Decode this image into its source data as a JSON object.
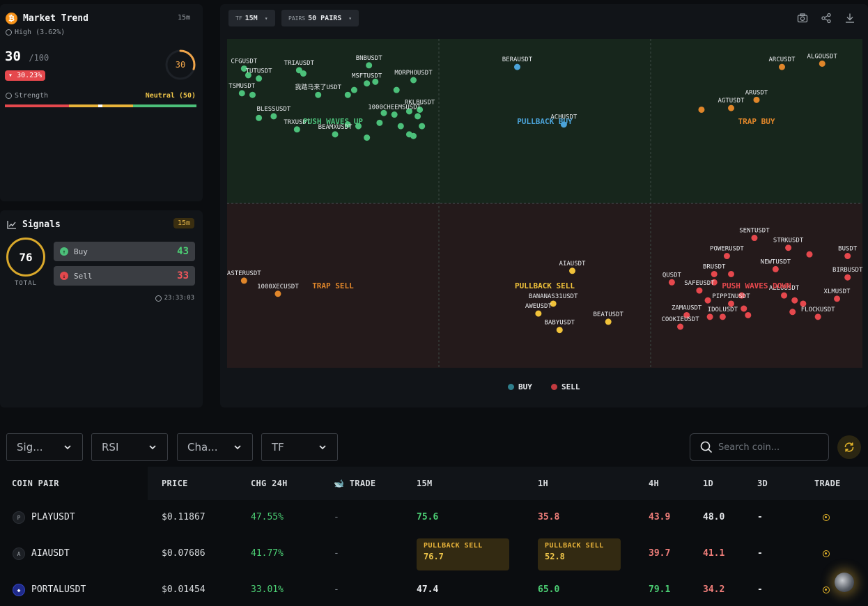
{
  "market_trend": {
    "icon": "bitcoin-icon",
    "title": "Market Trend",
    "timeframe": "15m",
    "high_label": "High (3.62%)",
    "score": "30",
    "score_max": "/100",
    "change": "30.23%",
    "gauge_value": "30",
    "gauge_fraction": 0.3,
    "strength_label": "Strength",
    "strength_status": "Neutral (50)"
  },
  "signals": {
    "title": "Signals",
    "timeframe": "15m",
    "total": "76",
    "total_label": "TOTAL",
    "buy_label": "Buy",
    "buy_count": "43",
    "sell_label": "Sell",
    "sell_count": "33",
    "time": "23:33:03"
  },
  "toolbar": {
    "tf_key": "TF",
    "tf_value": "15M",
    "pairs_key": "PAIRS",
    "pairs_value": "50 PAIRS"
  },
  "quadrant_labels": {
    "push_up": "PUSH WAVES UP",
    "pullback_buy": "PULLBACK BUY",
    "trap_buy": "TRAP BUY",
    "trap_sell": "TRAP SELL",
    "pullback_sell": "PULLBACK SELL",
    "push_down": "PUSH WAVES DOWN"
  },
  "legend": {
    "buy": "BUY",
    "sell": "SELL"
  },
  "colors": {
    "push_up": "#4cc07a",
    "pullback_buy": "#4ba3d9",
    "trap_buy": "#e0862a",
    "trap_sell": "#e0862a",
    "pullback_sell": "#f0c23a",
    "push_down": "#e5484d",
    "legend_buy": "#2f7f8c",
    "legend_sell": "#c23a3f"
  },
  "chart_data": {
    "type": "scatter",
    "points": [
      {
        "label": "CFGUSDT",
        "group": "push_up",
        "x": 0.08,
        "y": 0.82
      },
      {
        "label": "TUTUSDT",
        "group": "push_up",
        "x": 0.15,
        "y": 0.76
      },
      {
        "label": "TRIAUSDT",
        "group": "push_up",
        "x": 0.34,
        "y": 0.81
      },
      {
        "label": "BNBUSDT",
        "group": "push_up",
        "x": 0.67,
        "y": 0.84
      },
      {
        "label": "MORPHOUSDT",
        "group": "push_up",
        "x": 0.88,
        "y": 0.75
      },
      {
        "label": "MSFTUSDT",
        "group": "push_up",
        "x": 0.66,
        "y": 0.73
      },
      {
        "label": "TSMUSDT",
        "group": "push_up",
        "x": 0.07,
        "y": 0.67
      },
      {
        "label": "我踏马来了USDT",
        "group": "push_up",
        "x": 0.43,
        "y": 0.66
      },
      {
        "label": "RKLBUSDT",
        "group": "push_up",
        "x": 0.91,
        "y": 0.57
      },
      {
        "label": "BLESSUSDT",
        "group": "push_up",
        "x": 0.22,
        "y": 0.53
      },
      {
        "label": "1000CHEEMSUSDT",
        "group": "push_up",
        "x": 0.79,
        "y": 0.54
      },
      {
        "label": "TRXUSDT",
        "group": "push_up",
        "x": 0.33,
        "y": 0.45
      },
      {
        "label": "BEAMXUSDT",
        "group": "push_up",
        "x": 0.51,
        "y": 0.42
      },
      {
        "label": "BERAUSDT",
        "group": "pullback_buy",
        "x": 0.37,
        "y": 0.83
      },
      {
        "label": "ACHUSDT",
        "group": "pullback_buy",
        "x": 0.59,
        "y": 0.48
      },
      {
        "label": "ARCUSDT",
        "group": "trap_buy",
        "x": 0.62,
        "y": 0.83
      },
      {
        "label": "ALGOUSDT",
        "group": "trap_buy",
        "x": 0.81,
        "y": 0.85
      },
      {
        "label": "ARUSDT",
        "group": "trap_buy",
        "x": 0.5,
        "y": 0.63
      },
      {
        "label": "AGTUSDT",
        "group": "trap_buy",
        "x": 0.38,
        "y": 0.58
      },
      {
        "label": "ASTERUSDT",
        "group": "trap_sell",
        "x": 0.08,
        "y": 0.53
      },
      {
        "label": "1000XECUSDT",
        "group": "trap_sell",
        "x": 0.24,
        "y": 0.45
      },
      {
        "label": "AIAUSDT",
        "group": "pullback_sell",
        "x": 0.63,
        "y": 0.59
      },
      {
        "label": "BANANAS31USDT",
        "group": "pullback_sell",
        "x": 0.54,
        "y": 0.39
      },
      {
        "label": "AWEUSDT",
        "group": "pullback_sell",
        "x": 0.47,
        "y": 0.33
      },
      {
        "label": "BEATUSDT",
        "group": "pullback_sell",
        "x": 0.8,
        "y": 0.28
      },
      {
        "label": "BABYUSDT",
        "group": "pullback_sell",
        "x": 0.57,
        "y": 0.23
      },
      {
        "label": "SENTUSDT",
        "group": "push_down",
        "x": 0.49,
        "y": 0.79
      },
      {
        "label": "STRKUSDT",
        "group": "push_down",
        "x": 0.65,
        "y": 0.73
      },
      {
        "label": "POWERUSDT",
        "group": "push_down",
        "x": 0.36,
        "y": 0.68
      },
      {
        "label": "BUSDT",
        "group": "push_down",
        "x": 0.93,
        "y": 0.68
      },
      {
        "label": "NEWTUSDT",
        "group": "push_down",
        "x": 0.59,
        "y": 0.6
      },
      {
        "label": "BRUSDT",
        "group": "push_down",
        "x": 0.3,
        "y": 0.57
      },
      {
        "label": "BIRBUSDT",
        "group": "push_down",
        "x": 0.93,
        "y": 0.55
      },
      {
        "label": "QUSDT",
        "group": "push_down",
        "x": 0.1,
        "y": 0.52
      },
      {
        "label": "SAFEUSDT",
        "group": "push_down",
        "x": 0.23,
        "y": 0.47
      },
      {
        "label": "ALLOUSDT",
        "group": "push_down",
        "x": 0.63,
        "y": 0.44
      },
      {
        "label": "XLMUSDT",
        "group": "push_down",
        "x": 0.88,
        "y": 0.42
      },
      {
        "label": "PIPPINUSDT",
        "group": "push_down",
        "x": 0.38,
        "y": 0.39
      },
      {
        "label": "ZAMAUSDT",
        "group": "push_down",
        "x": 0.17,
        "y": 0.32
      },
      {
        "label": "IDOLUSDT",
        "group": "push_down",
        "x": 0.34,
        "y": 0.31
      },
      {
        "label": "FLOCKUSDT",
        "group": "push_down",
        "x": 0.79,
        "y": 0.31
      },
      {
        "label": "COOKIEUSDT",
        "group": "push_down",
        "x": 0.14,
        "y": 0.25
      }
    ],
    "extra_points": [
      {
        "group": "push_up",
        "x": 0.1,
        "y": 0.78
      },
      {
        "group": "push_up",
        "x": 0.12,
        "y": 0.66
      },
      {
        "group": "push_up",
        "x": 0.36,
        "y": 0.79
      },
      {
        "group": "push_up",
        "x": 0.57,
        "y": 0.66
      },
      {
        "group": "push_up",
        "x": 0.6,
        "y": 0.69
      },
      {
        "group": "push_up",
        "x": 0.7,
        "y": 0.74
      },
      {
        "group": "push_up",
        "x": 0.8,
        "y": 0.69
      },
      {
        "group": "push_up",
        "x": 0.15,
        "y": 0.52
      },
      {
        "group": "push_up",
        "x": 0.57,
        "y": 0.48
      },
      {
        "group": "push_up",
        "x": 0.62,
        "y": 0.47
      },
      {
        "group": "push_up",
        "x": 0.66,
        "y": 0.4
      },
      {
        "group": "push_up",
        "x": 0.72,
        "y": 0.49
      },
      {
        "group": "push_up",
        "x": 0.82,
        "y": 0.47
      },
      {
        "group": "push_up",
        "x": 0.86,
        "y": 0.56
      },
      {
        "group": "push_up",
        "x": 0.9,
        "y": 0.53
      },
      {
        "group": "push_up",
        "x": 0.92,
        "y": 0.47
      },
      {
        "group": "push_up",
        "x": 0.86,
        "y": 0.42
      },
      {
        "group": "push_up",
        "x": 0.88,
        "y": 0.41
      },
      {
        "group": "push_up",
        "x": 0.74,
        "y": 0.55
      },
      {
        "group": "trap_buy",
        "x": 0.24,
        "y": 0.57
      },
      {
        "group": "push_down",
        "x": 0.75,
        "y": 0.69
      },
      {
        "group": "push_down",
        "x": 0.3,
        "y": 0.52
      },
      {
        "group": "push_down",
        "x": 0.38,
        "y": 0.57
      },
      {
        "group": "push_down",
        "x": 0.27,
        "y": 0.41
      },
      {
        "group": "push_down",
        "x": 0.43,
        "y": 0.44
      },
      {
        "group": "push_down",
        "x": 0.44,
        "y": 0.36
      },
      {
        "group": "push_down",
        "x": 0.46,
        "y": 0.32
      },
      {
        "group": "push_down",
        "x": 0.68,
        "y": 0.41
      },
      {
        "group": "push_down",
        "x": 0.72,
        "y": 0.39
      },
      {
        "group": "push_down",
        "x": 0.67,
        "y": 0.34
      },
      {
        "group": "push_down",
        "x": 0.28,
        "y": 0.31
      }
    ]
  },
  "filters": [
    {
      "label": "Sig..."
    },
    {
      "label": "RSI"
    },
    {
      "label": "Cha..."
    },
    {
      "label": "TF"
    }
  ],
  "search": {
    "placeholder": "Search coin..."
  },
  "table": {
    "headers": [
      "COIN PAIR",
      "PRICE",
      "CHG 24H",
      "TRADE",
      "15M",
      "1H",
      "4H",
      "1D",
      "3D",
      "TRADE"
    ],
    "rows": [
      {
        "icon": "P",
        "pair": "PLAYUSDT",
        "price": "$0.11867",
        "chg": "47.55%",
        "trade": "-",
        "m15": "75.6",
        "h1": "35.8",
        "h4": "43.9",
        "d1": "48.0",
        "d3": "-"
      },
      {
        "icon": "A",
        "pair": "AIAUSDT",
        "price": "$0.07686",
        "chg": "41.77%",
        "trade": "-",
        "m15_badge": "PULLBACK SELL",
        "m15": "76.7",
        "h1_badge": "PULLBACK SELL",
        "h1": "52.8",
        "h4": "39.7",
        "d1": "41.1",
        "d3": "-"
      },
      {
        "icon": "",
        "pair": "PORTALUSDT",
        "price": "$0.01454",
        "chg": "33.01%",
        "trade": "-",
        "m15": "47.4",
        "h1": "65.0",
        "h4": "79.1",
        "d1": "34.2",
        "d3": "-"
      }
    ]
  }
}
